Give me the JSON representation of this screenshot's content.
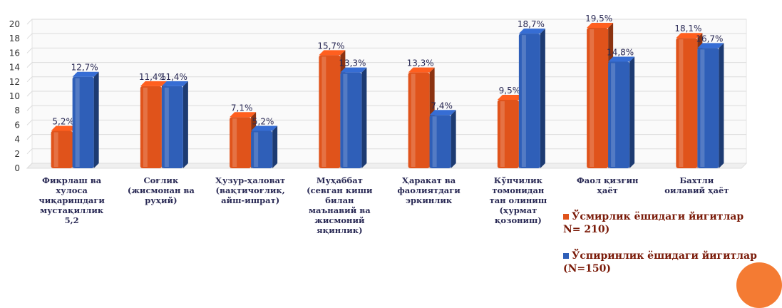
{
  "chart_data": {
    "type": "bar",
    "ylim": [
      0,
      20
    ],
    "yticks": [
      "0",
      "2",
      "4",
      "6",
      "8",
      "10",
      "12",
      "14",
      "16",
      "18",
      "20"
    ],
    "grid": true,
    "legend_position": "bottom-right",
    "categories": [
      "Фикрлаш ва\nхулоса\nчиқаришдаги\nмустақиллик\n5,2",
      "Соғлик\n(жисмонан ва\nруҳий)",
      "Ҳузур-ҳаловат\n(вақтичоғлик,\nайш-ишрат)",
      "Муҳаббат\n(севган киши\nбилан\nмаънавий ва\nжисмоний\nяқинлик)",
      "Ҳаракат ва\nфаолиятдаги\nэркинлик",
      "Кўпчилик\nтомонидан\nтан олиниш\n(ҳурмат\nқозониш)",
      "Фаол қизғин\nҳаёт",
      "Бахтли\nоилавий ҳаёт"
    ],
    "series": [
      {
        "name": "Ўсмирлик ёшидаги йигитлар\nN= 210)",
        "color": "#e0531b",
        "values": [
          5.2,
          11.4,
          7.1,
          15.7,
          13.3,
          9.5,
          19.5,
          18.1
        ],
        "labels": [
          "5,2%",
          "11,4%",
          "7,1%",
          "15,7%",
          "13,3%",
          "9,5%",
          "19,5%",
          "18,1%"
        ]
      },
      {
        "name": "Ўспиринлик ёшидаги йигитлар\n(N=150)",
        "color": "#2f5fb8",
        "values": [
          12.7,
          11.4,
          5.2,
          13.3,
          7.4,
          18.7,
          14.8,
          16.7
        ],
        "labels": [
          "12,7%",
          "11,4%",
          "5,2%",
          "13,3%",
          "7,4%",
          "18,7%",
          "14,8%",
          "16,7%"
        ]
      }
    ]
  },
  "legend": {
    "item1": "Ўсмирлик ёшидаги йигитлар\nN= 210)",
    "item2": "Ўспиринлик ёшидаги йигитлар\n(N=150)"
  },
  "colors": {
    "accent_circle": "#f47b33",
    "legend_text": "#7a1a08",
    "label_text": "#2a2a55"
  }
}
